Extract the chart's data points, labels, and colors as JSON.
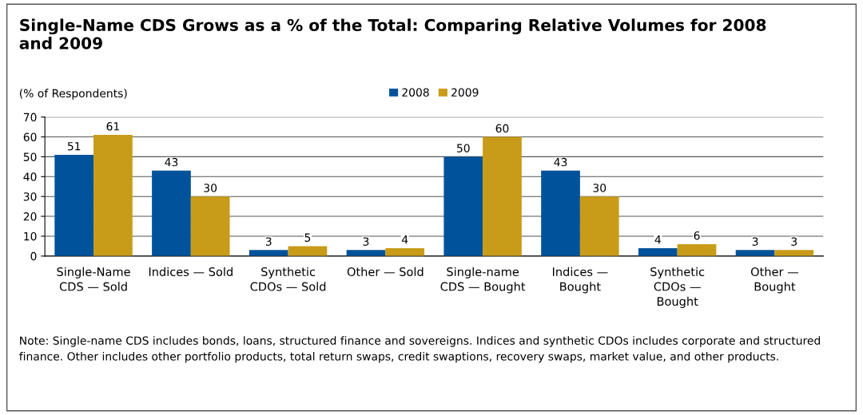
{
  "chart_data": {
    "type": "bar",
    "title": "Single-Name CDS Grows as a % of the Total: Comparing Relative Volumes for 2008\nand 2009",
    "ylabel": "(% of Respondents)",
    "categories": [
      "Single-Name\nCDS — Sold",
      "Indices — Sold",
      "Synthetic\nCDOs — Sold",
      "Other — Sold",
      "Single-name\nCDS — Bought",
      "Indices —\nBought",
      "Synthetic\nCDOs —\nBought",
      "Other —\nBought"
    ],
    "series": [
      {
        "name": "2008",
        "color": "#00529b",
        "values": [
          51,
          43,
          3,
          3,
          50,
          43,
          4,
          3
        ]
      },
      {
        "name": "2009",
        "color": "#c89b18",
        "values": [
          61,
          30,
          5,
          4,
          60,
          30,
          6,
          3
        ]
      }
    ],
    "ylim": [
      0,
      70
    ],
    "yticks": [
      0,
      10,
      20,
      30,
      40,
      50,
      60,
      70
    ],
    "grid": "y",
    "legend": "top",
    "data_labels": true,
    "annotations": [
      "Note: Single-name CDS includes bonds, loans, structured finance and sovereigns. Indices and synthetic CDOs includes corporate and structured finance. Other includes other portfolio products, total return swaps, credit swaptions, recovery swaps, market value, and other products."
    ]
  }
}
